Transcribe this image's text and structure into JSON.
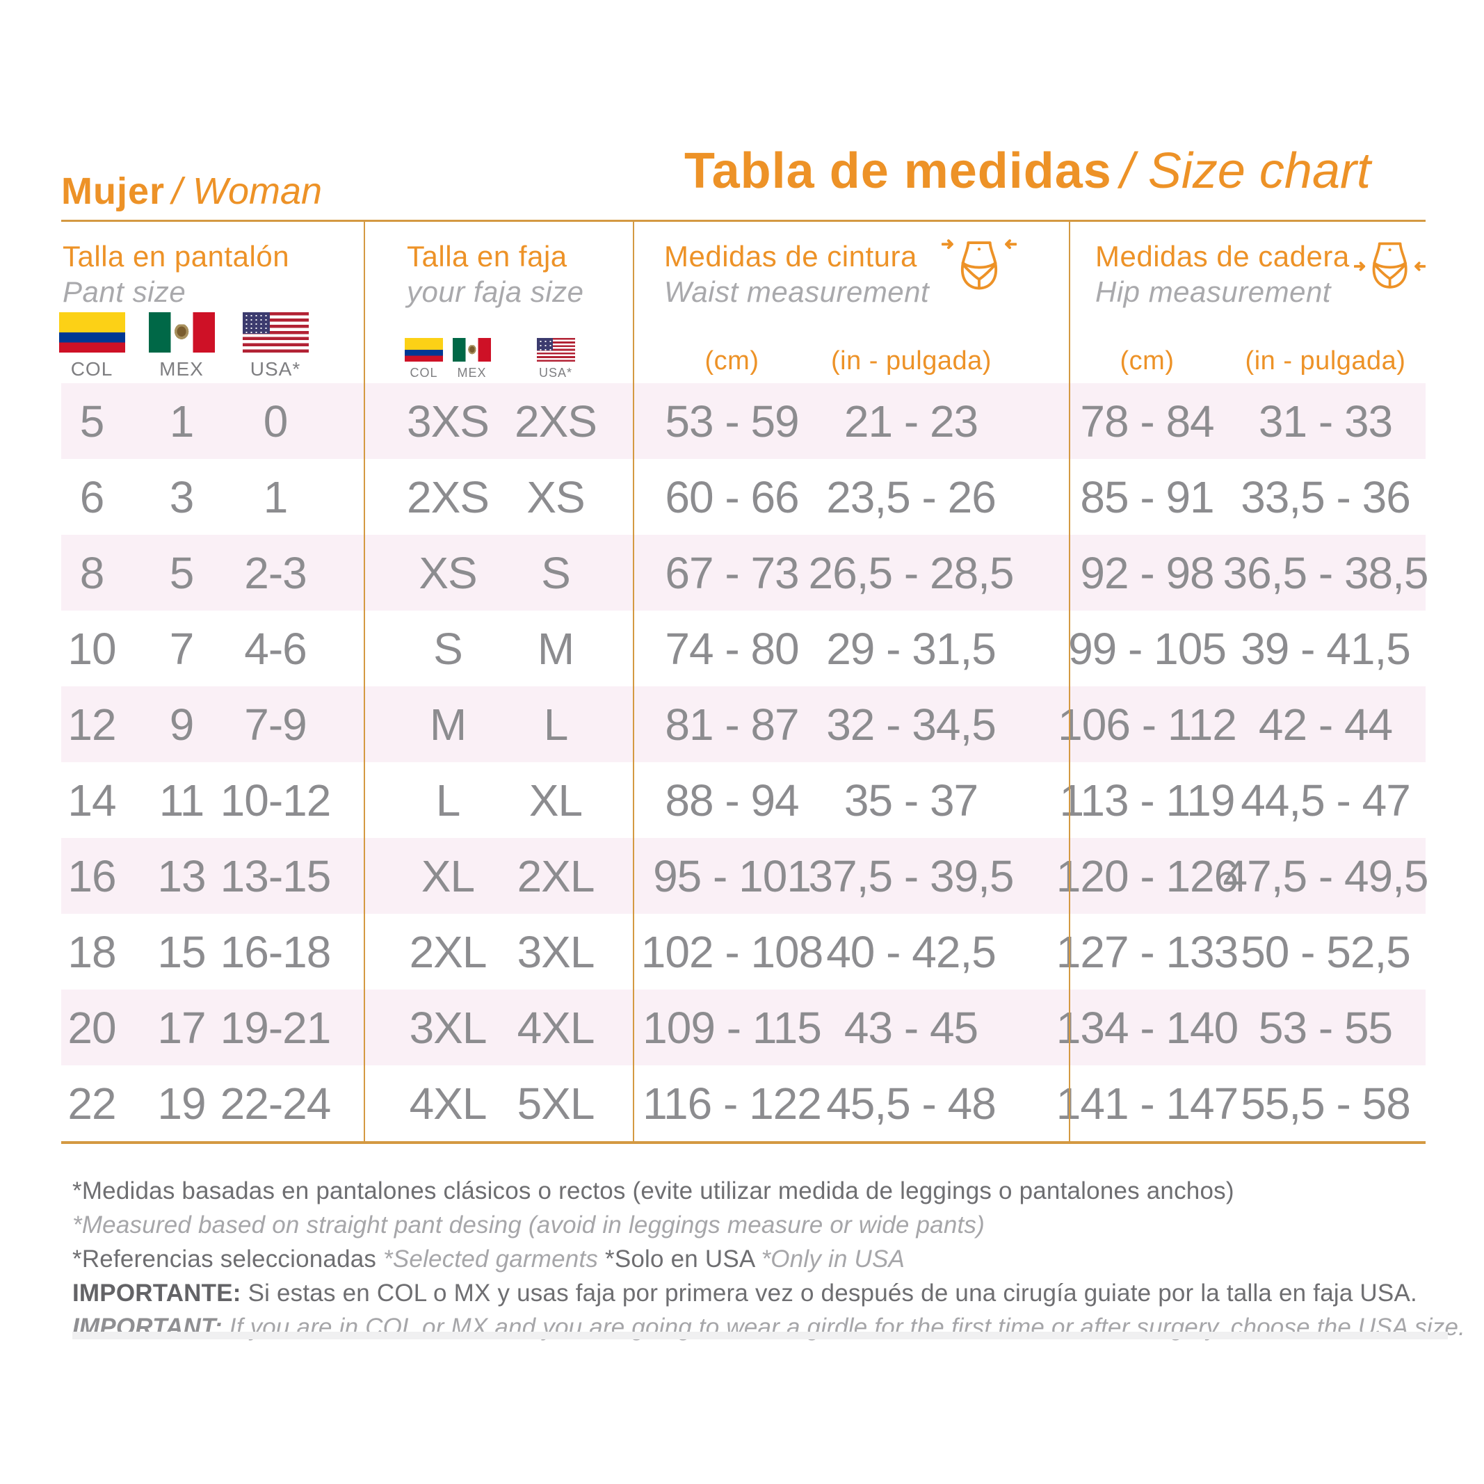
{
  "brand": {
    "bold": "Mujer",
    "italic": "/ Woman"
  },
  "title": {
    "bold": "Tabla de medidas",
    "italic": "/ Size chart"
  },
  "colors": {
    "accent_orange": "#ED9227",
    "line_orange": "#D49942",
    "row_pink": "#FAF0F6",
    "data_gray": "#8C8C8F",
    "subtitle_gray": "#A9A9AC",
    "note_dark": "#6E6E71",
    "note_light": "#A6A6A9"
  },
  "columns": [
    {
      "title": "Talla en pantalón",
      "subtitle": "Pant size",
      "flags": [
        {
          "country": "Colombia",
          "label": "COL"
        },
        {
          "country": "Mexico",
          "label": "MEX"
        },
        {
          "country": "USA",
          "label": "USA*"
        }
      ]
    },
    {
      "title": "Talla en faja",
      "subtitle": "your faja size",
      "flags": [
        {
          "country": "Colombia",
          "label": "COL"
        },
        {
          "country": "Mexico",
          "label": "MEX"
        },
        {
          "country": "USA",
          "label": "USA*"
        }
      ]
    },
    {
      "title": "Medidas de cintura",
      "subtitle": "Waist measurement",
      "icon": "waist-measure-icon",
      "units": [
        "(cm)",
        "(in - pulgada)"
      ]
    },
    {
      "title": "Medidas de cadera",
      "subtitle": "Hip measurement",
      "icon": "hip-measure-icon",
      "units": [
        "(cm)",
        "(in - pulgada)"
      ]
    }
  ],
  "rows": [
    {
      "pant_col": "5",
      "pant_mex": "1",
      "pant_usa": "0",
      "faja_col_mex": "3XS",
      "faja_usa": "2XS",
      "waist_cm": "53 - 59",
      "waist_in": "21 - 23",
      "hip_cm": "78 - 84",
      "hip_in": "31 - 33"
    },
    {
      "pant_col": "6",
      "pant_mex": "3",
      "pant_usa": "1",
      "faja_col_mex": "2XS",
      "faja_usa": "XS",
      "waist_cm": "60 - 66",
      "waist_in": "23,5 - 26",
      "hip_cm": "85 - 91",
      "hip_in": "33,5 - 36"
    },
    {
      "pant_col": "8",
      "pant_mex": "5",
      "pant_usa": "2-3",
      "faja_col_mex": "XS",
      "faja_usa": "S",
      "waist_cm": "67 - 73",
      "waist_in": "26,5 - 28,5",
      "hip_cm": "92 - 98",
      "hip_in": "36,5 - 38,5"
    },
    {
      "pant_col": "10",
      "pant_mex": "7",
      "pant_usa": "4-6",
      "faja_col_mex": "S",
      "faja_usa": "M",
      "waist_cm": "74 - 80",
      "waist_in": "29 - 31,5",
      "hip_cm": "99 - 105",
      "hip_in": "39 - 41,5"
    },
    {
      "pant_col": "12",
      "pant_mex": "9",
      "pant_usa": "7-9",
      "faja_col_mex": "M",
      "faja_usa": "L",
      "waist_cm": "81 - 87",
      "waist_in": "32 - 34,5",
      "hip_cm": "106 - 112",
      "hip_in": "42 - 44"
    },
    {
      "pant_col": "14",
      "pant_mex": "11",
      "pant_usa": "10-12",
      "faja_col_mex": "L",
      "faja_usa": "XL",
      "waist_cm": "88 - 94",
      "waist_in": "35 - 37",
      "hip_cm": "113 - 119",
      "hip_in": "44,5 - 47"
    },
    {
      "pant_col": "16",
      "pant_mex": "13",
      "pant_usa": "13-15",
      "faja_col_mex": "XL",
      "faja_usa": "2XL",
      "waist_cm": "95 - 101",
      "waist_in": "37,5 - 39,5",
      "hip_cm": "120 - 126",
      "hip_in": "47,5 - 49,5"
    },
    {
      "pant_col": "18",
      "pant_mex": "15",
      "pant_usa": "16-18",
      "faja_col_mex": "2XL",
      "faja_usa": "3XL",
      "waist_cm": "102 - 108",
      "waist_in": "40 - 42,5",
      "hip_cm": "127 - 133",
      "hip_in": "50 - 52,5"
    },
    {
      "pant_col": "20",
      "pant_mex": "17",
      "pant_usa": "19-21",
      "faja_col_mex": "3XL",
      "faja_usa": "4XL",
      "waist_cm": "109 - 115",
      "waist_in": "43 - 45",
      "hip_cm": "134 - 140",
      "hip_in": "53 - 55"
    },
    {
      "pant_col": "22",
      "pant_mex": "19",
      "pant_usa": "22-24",
      "faja_col_mex": "4XL",
      "faja_usa": "5XL",
      "waist_cm": "116 - 122",
      "waist_in": "45,5 - 48",
      "hip_cm": "141 - 147",
      "hip_in": "55,5 - 58"
    }
  ],
  "footnotes": [
    {
      "segments": [
        {
          "text": "*Medidas basadas en pantalones clásicos o rectos (evite utilizar medida de leggings o pantalones anchos)",
          "style": "es"
        }
      ]
    },
    {
      "segments": [
        {
          "text": "*Measured based on straight pant desing (avoid in leggings measure or wide pants)",
          "style": "en"
        }
      ]
    },
    {
      "segments": [
        {
          "text": "*Referencias seleccionadas ",
          "style": "es"
        },
        {
          "text": "*Selected garments ",
          "style": "en"
        },
        {
          "text": "*Solo en USA ",
          "style": "es"
        },
        {
          "text": "*Only in USA",
          "style": "en"
        }
      ]
    },
    {
      "segments": [
        {
          "text": "IMPORTANTE: ",
          "style": "es-bold"
        },
        {
          "text": "Si estas en COL o MX y usas faja por primera vez o después de una cirugía guiate por la talla en faja USA.",
          "style": "es"
        }
      ]
    },
    {
      "segments": [
        {
          "text": "IMPORTANT: ",
          "style": "en-bold"
        },
        {
          "text": "If you are in COL or MX and you are going to wear a girdle for the first time or after surgery, choose the USA size.",
          "style": "en"
        }
      ]
    }
  ]
}
